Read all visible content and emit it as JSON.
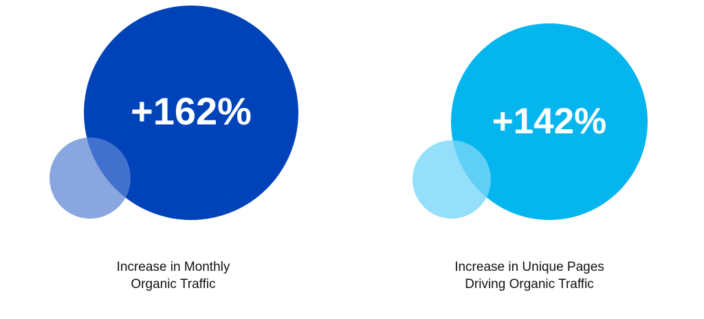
{
  "metrics": [
    {
      "value": "+162%",
      "caption_line1": "Increase in Monthly",
      "caption_line2": "Organic Traffic",
      "big_circle_color": "#0043B9",
      "small_circle_color": "rgba(92, 132, 212, 0.72)"
    },
    {
      "value": "+142%",
      "caption_line1": "Increase in Unique Pages",
      "caption_line2": "Driving Organic Traffic",
      "big_circle_color": "#05B5EE",
      "small_circle_color": "rgba(120, 214, 248, 0.78)"
    }
  ]
}
